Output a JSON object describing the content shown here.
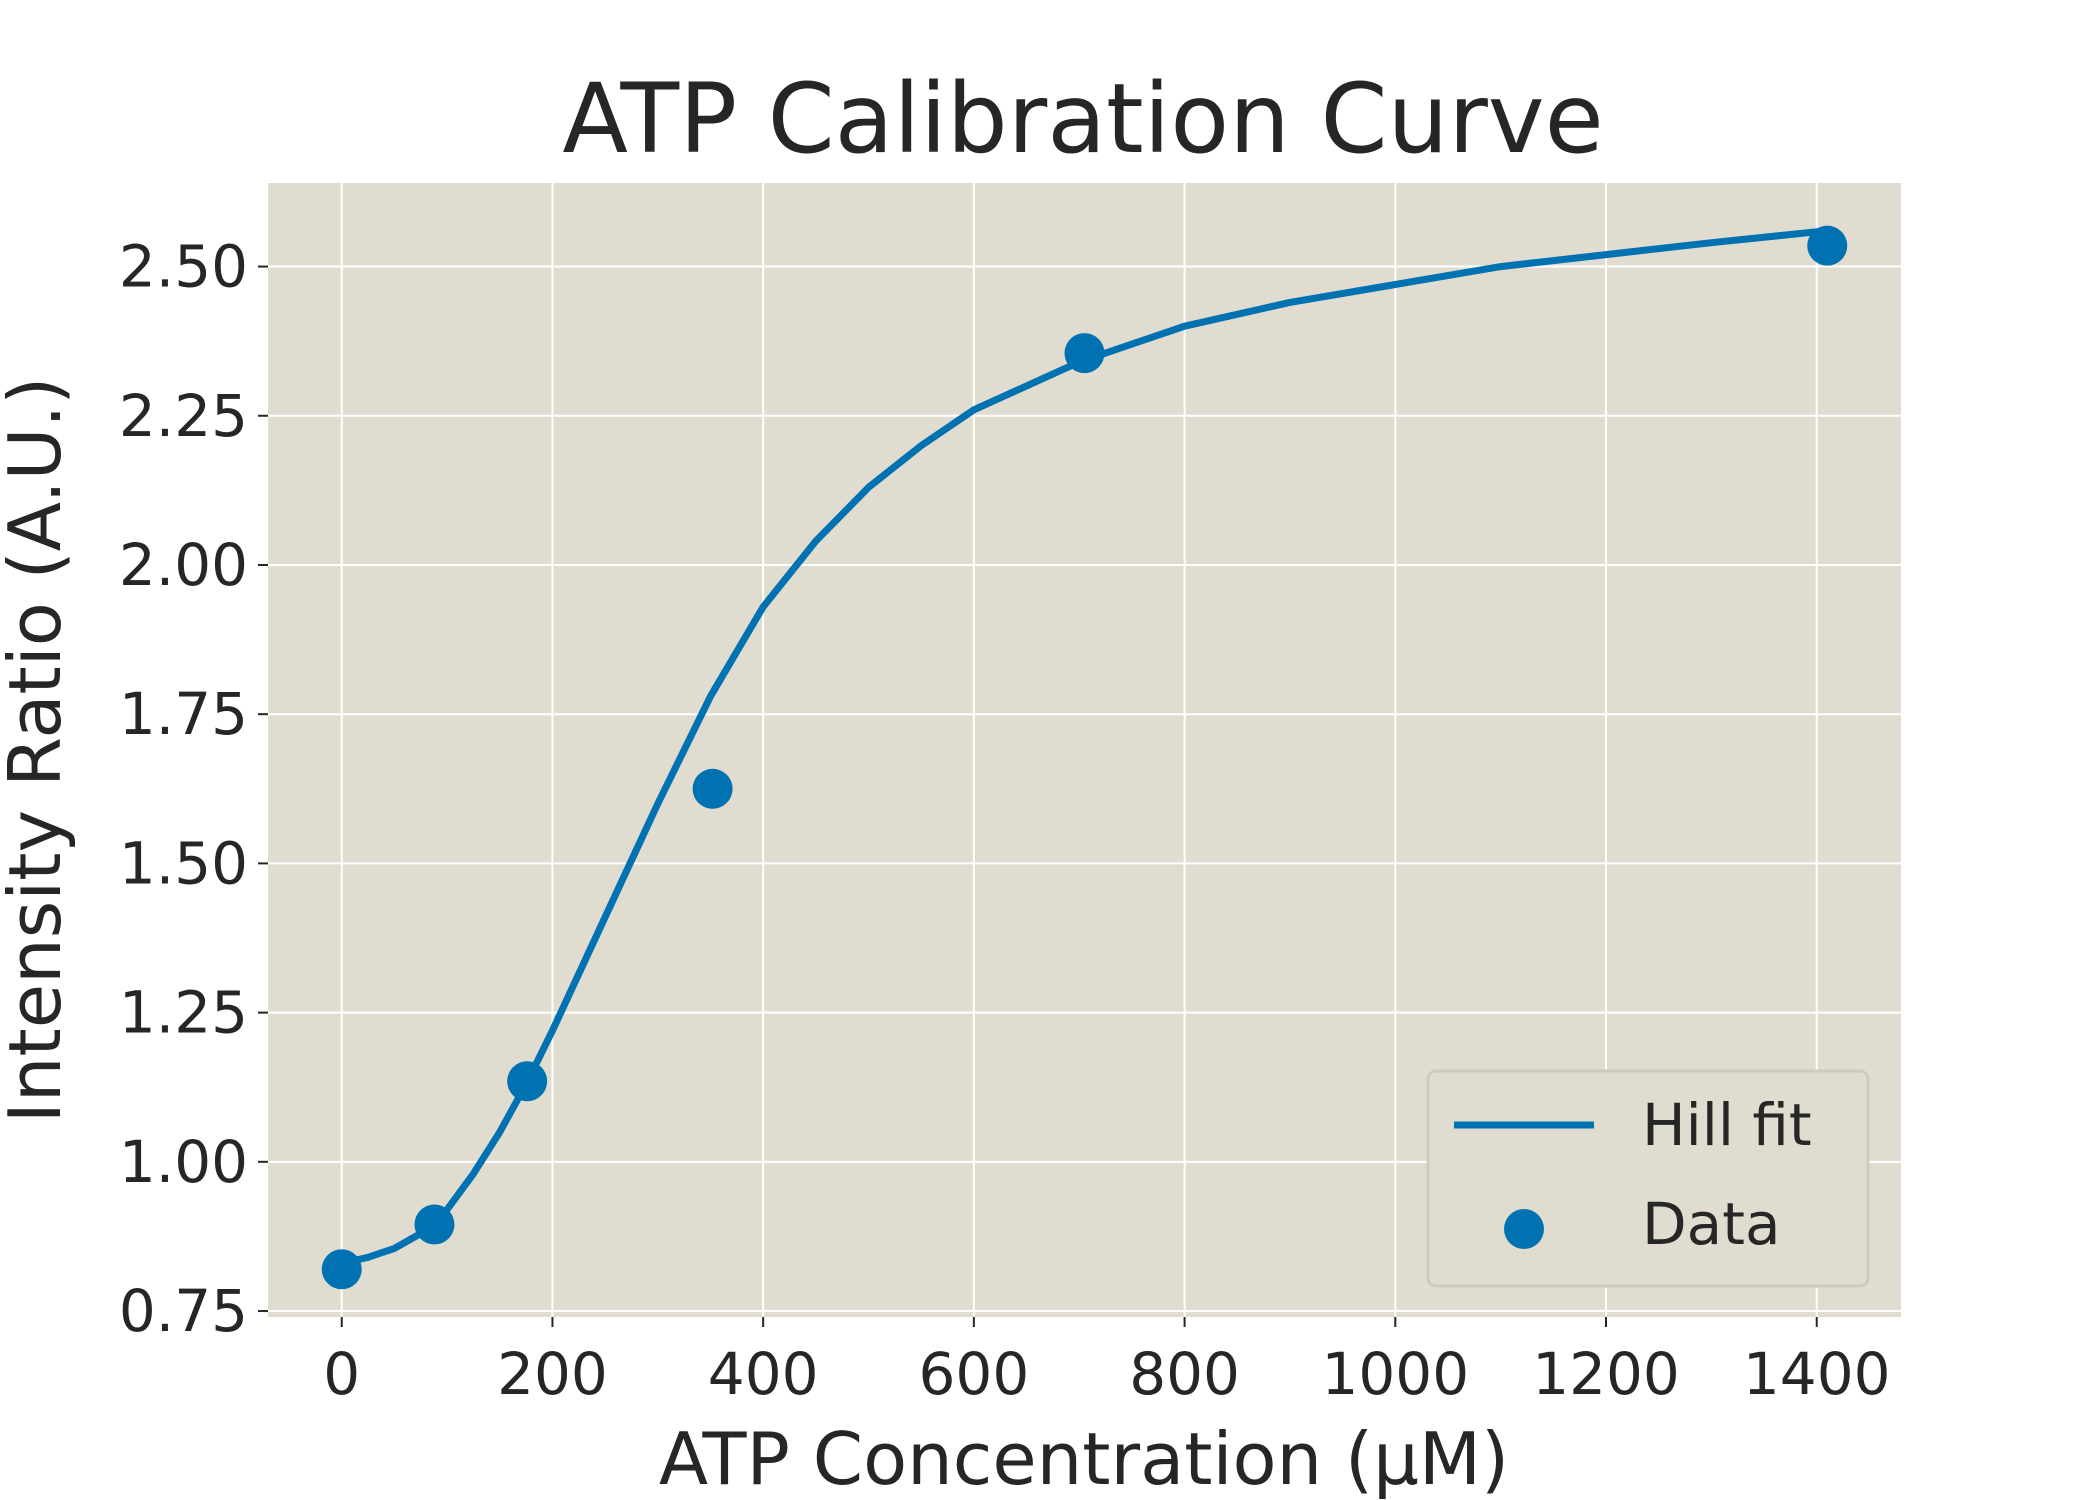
{
  "chart_data": {
    "type": "scatter",
    "title": "ATP Calibration Curve",
    "xlabel": "ATP Concentration (μM)",
    "ylabel": "Intensity Ratio (A.U.)",
    "xlim": [
      -70,
      1480
    ],
    "ylim": [
      0.74,
      2.64
    ],
    "xticks": [
      0,
      200,
      400,
      600,
      800,
      1000,
      1200,
      1400
    ],
    "xtick_labels": [
      "0",
      "200",
      "400",
      "600",
      "800",
      "1000",
      "1200",
      "1400"
    ],
    "yticks": [
      0.75,
      1.0,
      1.25,
      1.5,
      1.75,
      2.0,
      2.25,
      2.5
    ],
    "ytick_labels": [
      "0.75",
      "1.00",
      "1.25",
      "1.50",
      "1.75",
      "2.00",
      "2.25",
      "2.50"
    ],
    "grid": true,
    "legend_position": "bottom-right",
    "series": [
      {
        "name": "Hill fit",
        "kind": "line",
        "color": "#0072b2",
        "x": [
          0,
          25,
          50,
          75,
          100,
          125,
          150,
          175,
          200,
          250,
          300,
          350,
          400,
          450,
          500,
          550,
          600,
          650,
          700,
          750,
          800,
          900,
          1000,
          1100,
          1200,
          1300,
          1410
        ],
        "y": [
          0.83,
          0.84,
          0.855,
          0.88,
          0.92,
          0.98,
          1.05,
          1.13,
          1.22,
          1.41,
          1.6,
          1.78,
          1.93,
          2.04,
          2.13,
          2.2,
          2.26,
          2.3,
          2.34,
          2.37,
          2.4,
          2.44,
          2.47,
          2.5,
          2.52,
          2.54,
          2.56
        ]
      },
      {
        "name": "Data",
        "kind": "scatter",
        "color": "#0072b2",
        "x": [
          0,
          88,
          176,
          352,
          705,
          1410
        ],
        "y": [
          0.82,
          0.895,
          1.135,
          1.625,
          2.355,
          2.535
        ]
      }
    ]
  },
  "colors": {
    "axes_background": "#e1dcd0",
    "grid": "#ffffff",
    "text": "#262626"
  }
}
